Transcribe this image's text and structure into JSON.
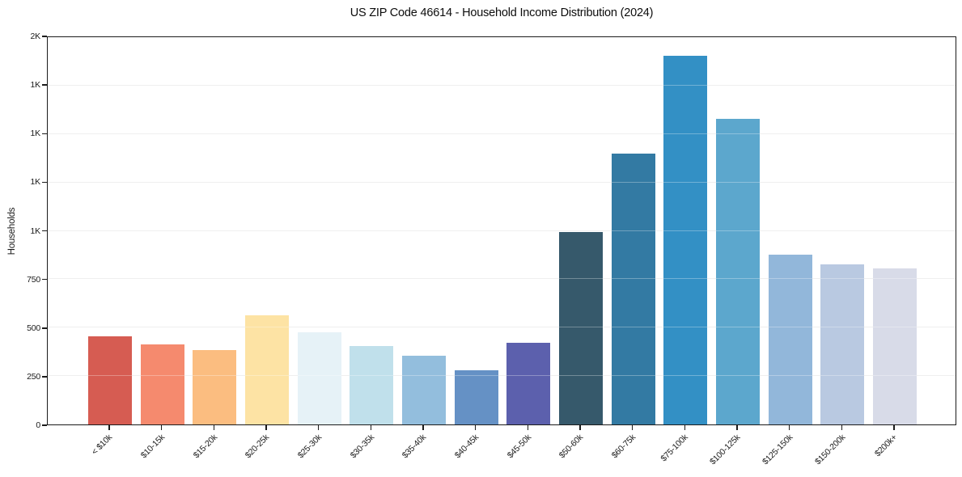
{
  "chart_data": {
    "type": "bar",
    "title": "US ZIP Code 46614 - Household Income Distribution (2024)",
    "xlabel": "",
    "ylabel": "Households",
    "categories": [
      "< $10k",
      "$10-15k",
      "$15-20k",
      "$20-25k",
      "$25-30k",
      "$30-35k",
      "$35-40k",
      "$40-45k",
      "$45-50k",
      "$50-60k",
      "$60-75k",
      "$75-100k",
      "$100-125k",
      "$125-150k",
      "$150-200k",
      "$200k+"
    ],
    "values": [
      455,
      415,
      385,
      565,
      475,
      405,
      355,
      280,
      420,
      995,
      1400,
      1905,
      1580,
      875,
      825,
      805
    ],
    "bar_colors": [
      "#d65c52",
      "#f58a6e",
      "#fbbd80",
      "#fde3a4",
      "#e6f2f7",
      "#c0e0eb",
      "#93bedd",
      "#6591c5",
      "#5c60ad",
      "#36596b",
      "#337aa3",
      "#3390c5",
      "#5ca7cd",
      "#92b7da",
      "#b9c9e1",
      "#d8dbe8"
    ],
    "ylim": [
      0,
      2000
    ],
    "y_ticks": [
      {
        "value": 0,
        "label": "0"
      },
      {
        "value": 250,
        "label": "250"
      },
      {
        "value": 500,
        "label": "500"
      },
      {
        "value": 750,
        "label": "750"
      },
      {
        "value": 1000,
        "label": "1K"
      },
      {
        "value": 1250,
        "label": "1K"
      },
      {
        "value": 1500,
        "label": "1K"
      },
      {
        "value": 1750,
        "label": "1K"
      },
      {
        "value": 2000,
        "label": "2K"
      }
    ],
    "grid": "horizontal",
    "legend": "none",
    "frame": "full-box",
    "frame_color": "#1b1b1b",
    "gridline_color": "#e9e9e9",
    "background_color": "#ffffff"
  }
}
